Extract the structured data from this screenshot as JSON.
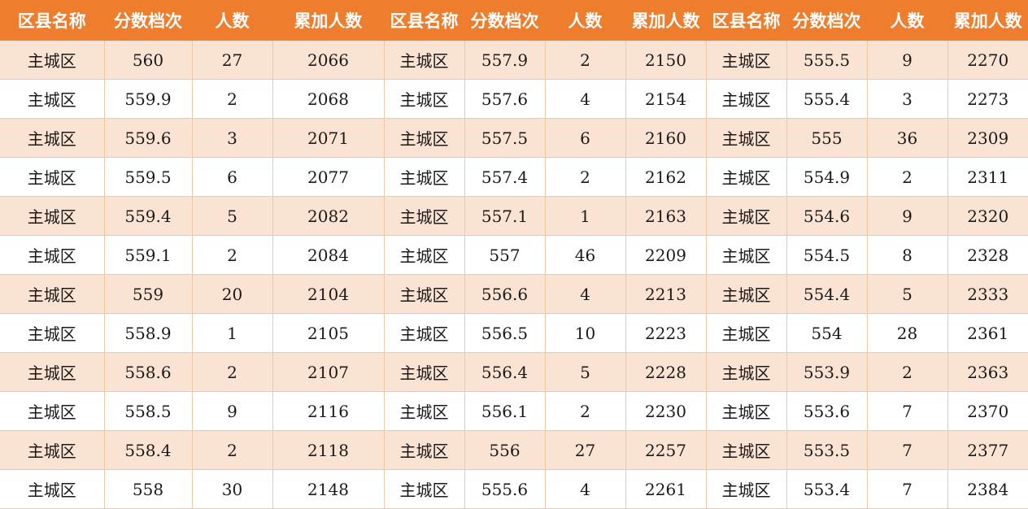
{
  "table": {
    "headers": [
      "区县名称",
      "分数档次",
      "人数",
      "累加人数",
      "区县名称",
      "分数档次",
      "人数",
      "累加人数",
      "区县名称",
      "分数档次",
      "人数",
      "累加人数"
    ],
    "rows": [
      [
        "主城区",
        "560",
        "27",
        "2066",
        "主城区",
        "557.9",
        "2",
        "2150",
        "主城区",
        "555.5",
        "9",
        "2270"
      ],
      [
        "主城区",
        "559.9",
        "2",
        "2068",
        "主城区",
        "557.6",
        "4",
        "2154",
        "主城区",
        "555.4",
        "3",
        "2273"
      ],
      [
        "主城区",
        "559.6",
        "3",
        "2071",
        "主城区",
        "557.5",
        "6",
        "2160",
        "主城区",
        "555",
        "36",
        "2309"
      ],
      [
        "主城区",
        "559.5",
        "6",
        "2077",
        "主城区",
        "557.4",
        "2",
        "2162",
        "主城区",
        "554.9",
        "2",
        "2311"
      ],
      [
        "主城区",
        "559.4",
        "5",
        "2082",
        "主城区",
        "557.1",
        "1",
        "2163",
        "主城区",
        "554.6",
        "9",
        "2320"
      ],
      [
        "主城区",
        "559.1",
        "2",
        "2084",
        "主城区",
        "557",
        "46",
        "2209",
        "主城区",
        "554.5",
        "8",
        "2328"
      ],
      [
        "主城区",
        "559",
        "20",
        "2104",
        "主城区",
        "556.6",
        "4",
        "2213",
        "主城区",
        "554.4",
        "5",
        "2333"
      ],
      [
        "主城区",
        "558.9",
        "1",
        "2105",
        "主城区",
        "556.5",
        "10",
        "2223",
        "主城区",
        "554",
        "28",
        "2361"
      ],
      [
        "主城区",
        "558.6",
        "2",
        "2107",
        "主城区",
        "556.4",
        "5",
        "2228",
        "主城区",
        "553.9",
        "2",
        "2363"
      ],
      [
        "主城区",
        "558.5",
        "9",
        "2116",
        "主城区",
        "556.1",
        "2",
        "2230",
        "主城区",
        "553.6",
        "7",
        "2370"
      ],
      [
        "主城区",
        "558.4",
        "2",
        "2118",
        "主城区",
        "556",
        "27",
        "2257",
        "主城区",
        "553.5",
        "7",
        "2377"
      ],
      [
        "主城区",
        "558",
        "30",
        "2148",
        "主城区",
        "555.6",
        "4",
        "2261",
        "主城区",
        "553.4",
        "7",
        "2384"
      ]
    ]
  },
  "colors": {
    "header_bg": "#ee7d2e",
    "header_text": "#ffffff",
    "odd_row_bg": "#fbe3d3",
    "even_row_bg": "#ffffff",
    "grid_line": "#f2c7a3"
  }
}
